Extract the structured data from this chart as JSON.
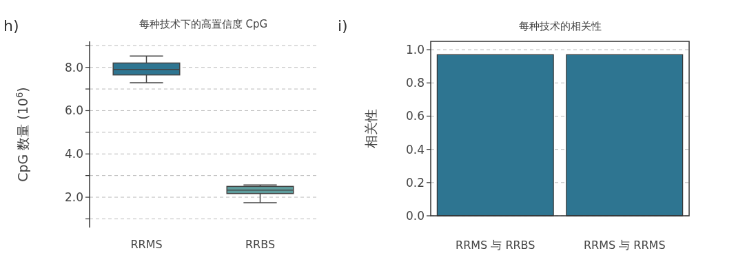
{
  "chart_data": [
    {
      "type": "box",
      "title": "每种技术下的高置信度 CpG",
      "ylabel": "CpG 数量 (10$^{6}$)",
      "annotations": [
        "h)"
      ],
      "categories": [
        "RRMS",
        "RRBS"
      ],
      "colors": [
        "#2e7591",
        "#5f9e9e"
      ],
      "boxes": [
        {
          "low": 7.29,
          "q1": 7.65,
          "median": 7.9,
          "q3": 8.2,
          "high": 8.52
        },
        {
          "low": 1.75,
          "q1": 2.17,
          "median": 2.33,
          "q3": 2.5,
          "high": 2.57
        }
      ],
      "ylim": [
        0.6,
        9.2
      ],
      "yticks": [
        {
          "value": 1,
          "label": null
        },
        {
          "value": 2,
          "label": "2.0"
        },
        {
          "value": 3,
          "label": null
        },
        {
          "value": 4,
          "label": "4.0"
        },
        {
          "value": 5,
          "label": null
        },
        {
          "value": 6,
          "label": "6.0"
        },
        {
          "value": 7,
          "label": null
        },
        {
          "value": 8,
          "label": "8.0"
        },
        {
          "value": 9,
          "label": null
        }
      ],
      "grid": "y"
    },
    {
      "type": "bar",
      "title": "每种技术的相关性",
      "ylabel": "相关性",
      "annotations": [
        "i)"
      ],
      "categories": [
        "RRMS 与 RRBS",
        "RRMS 与 RRMS"
      ],
      "values": [
        0.97,
        0.97
      ],
      "color": "#2e7591",
      "ylim": [
        0,
        1.05
      ],
      "yticks": [
        {
          "value": 0,
          "label": "0.0"
        },
        {
          "value": 0.2,
          "label": "0.2"
        },
        {
          "value": 0.4,
          "label": "0.4"
        },
        {
          "value": 0.6,
          "label": "0.6"
        },
        {
          "value": 0.8,
          "label": "0.8"
        },
        {
          "value": 1,
          "label": "1.0"
        }
      ],
      "grid": "y"
    }
  ]
}
